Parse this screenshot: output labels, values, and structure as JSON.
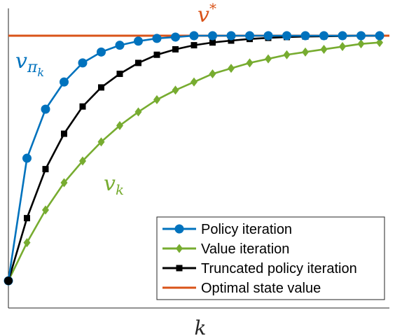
{
  "chart_data": {
    "type": "line",
    "title": "",
    "xlabel": "k",
    "ylabel": "",
    "grid": false,
    "legend_position": "bottom-right",
    "x": [
      0,
      1,
      2,
      3,
      4,
      5,
      6,
      7,
      8,
      9,
      10,
      11,
      12,
      13,
      14,
      15,
      16,
      17,
      18,
      19,
      20
    ],
    "xlim": [
      0,
      20
    ],
    "ylim": [
      0,
      1.1
    ],
    "series": [
      {
        "name": "Policy iteration",
        "color": "#0072BD",
        "marker": "circle",
        "values": [
          0.1,
          0.55,
          0.73,
          0.83,
          0.9,
          0.94,
          0.965,
          0.98,
          0.99,
          0.995,
          1.0,
          1.0,
          1.0,
          1.0,
          1.0,
          1.0,
          1.0,
          1.0,
          1.0,
          1.0,
          1.0
        ]
      },
      {
        "name": "Value iteration",
        "color": "#77AC30",
        "marker": "diamond",
        "values": [
          0.1,
          0.24,
          0.36,
          0.46,
          0.54,
          0.61,
          0.67,
          0.72,
          0.765,
          0.8,
          0.83,
          0.86,
          0.88,
          0.9,
          0.915,
          0.93,
          0.94,
          0.95,
          0.96,
          0.97,
          0.975
        ]
      },
      {
        "name": "Truncated policy iteration",
        "color": "#000000",
        "marker": "square",
        "values": [
          0.1,
          0.33,
          0.51,
          0.64,
          0.74,
          0.81,
          0.86,
          0.9,
          0.93,
          0.95,
          0.965,
          0.975,
          0.982,
          0.988,
          0.992,
          0.995,
          0.997,
          0.998,
          0.999,
          1.0,
          1.0
        ]
      },
      {
        "name": "Optimal state value",
        "color": "#D95319",
        "marker": "none",
        "values": [
          1.0,
          1.0,
          1.0,
          1.0,
          1.0,
          1.0,
          1.0,
          1.0,
          1.0,
          1.0,
          1.0,
          1.0,
          1.0,
          1.0,
          1.0,
          1.0,
          1.0,
          1.0,
          1.0,
          1.0,
          1.0
        ]
      }
    ],
    "annotations": {
      "vstar_base": "v",
      "vstar_sup": "*",
      "vpik_base": "v",
      "vpik_sub": "π",
      "vpik_subsub": "k",
      "vk_base": "v",
      "vk_sub": "k"
    }
  }
}
